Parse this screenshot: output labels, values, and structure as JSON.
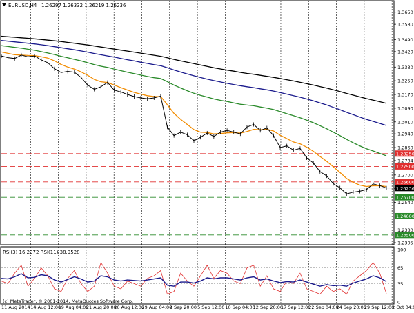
{
  "header": {
    "symbol_timeframe": "EURUSD,H4",
    "ohlc": "1.26297 1.26332 1.26219 1.26236"
  },
  "copyright": "(c) MetaTrader, © 2001-2014, MetaQuotes Software Corp.",
  "chart_data": {
    "type": "line",
    "title": "EURUSD,H4",
    "subtitle": "1.26297 1.26332 1.26219 1.26236",
    "x_labels": [
      "11 Aug 2014",
      "14 Aug 12:00",
      "19 Aug 04:00",
      "21 Aug 20:00",
      "26 Aug 12:00",
      "29 Aug 04:00",
      "2 Sep 20:00",
      "5 Sep 12:00",
      "10 Sep 04:00",
      "12 Sep 20:00",
      "17 Sep 12:00",
      "22 Sep 04:00",
      "24 Sep 20:00",
      "29 Sep 12:00",
      "2 Oct 04:00"
    ],
    "price_axis_labels": [
      "1.3650",
      "1.3580",
      "1.3490",
      "1.3420",
      "1.3330",
      "1.3250",
      "1.3170",
      "1.3090",
      "1.3010",
      "1.2940",
      "1.2860",
      "1.2784",
      "1.2700",
      "1.2620",
      "1.2540",
      "1.2460",
      "1.2380",
      "1.2305"
    ],
    "ylim": [
      1.2305,
      1.3665
    ],
    "horizontal_levels": [
      {
        "price": 1.2825,
        "label": "1.28250",
        "color": "#e03030"
      },
      {
        "price": 1.275,
        "label": "1.27500",
        "color": "#e03030"
      },
      {
        "price": 1.266,
        "label": "1.26600",
        "color": "#e03030"
      },
      {
        "price": 1.257,
        "label": "1.25700",
        "color": "#2a8a2a"
      },
      {
        "price": 1.246,
        "label": "1.24600",
        "color": "#2a8a2a"
      },
      {
        "price": 1.235,
        "label": "1.23500",
        "color": "#2a8a2a"
      }
    ],
    "current_price": {
      "price": 1.26236,
      "label": "1.26236"
    },
    "series": [
      {
        "kind": "close",
        "color": "#000000",
        "values": [
          1.3395,
          1.3385,
          1.338,
          1.34,
          1.339,
          1.3395,
          1.3372,
          1.3355,
          1.332,
          1.3298,
          1.3305,
          1.33,
          1.327,
          1.3225,
          1.32,
          1.3215,
          1.324,
          1.3195,
          1.3185,
          1.317,
          1.3158,
          1.315,
          1.3145,
          1.315,
          1.316,
          1.298,
          1.293,
          1.295,
          1.2935,
          1.29,
          1.292,
          1.2945,
          1.2925,
          1.295,
          1.296,
          1.295,
          1.294,
          1.298,
          1.2995,
          1.296,
          1.2975,
          1.293,
          1.286,
          1.287,
          1.2845,
          1.2855,
          1.28,
          1.277,
          1.272,
          1.2695,
          1.265,
          1.2625,
          1.259,
          1.26,
          1.2605,
          1.2615,
          1.2648,
          1.2638,
          1.2624
        ]
      },
      {
        "kind": "moving-average",
        "color": "#f28c00",
        "values": [
          1.3418,
          1.341,
          1.3402,
          1.34,
          1.3398,
          1.3397,
          1.339,
          1.3382,
          1.3366,
          1.3345,
          1.333,
          1.3318,
          1.3302,
          1.3282,
          1.3258,
          1.3244,
          1.324,
          1.3225,
          1.321,
          1.3196,
          1.3182,
          1.3172,
          1.3163,
          1.3158,
          1.3158,
          1.311,
          1.306,
          1.3025,
          1.2995,
          1.2965,
          1.295,
          1.2948,
          1.294,
          1.2942,
          1.2946,
          1.2947,
          1.2944,
          1.2954,
          1.2966,
          1.2964,
          1.2967,
          1.2957,
          1.2932,
          1.2912,
          1.2893,
          1.2882,
          1.2862,
          1.2838,
          1.2808,
          1.278,
          1.2748,
          1.2715,
          1.268,
          1.2657,
          1.2641,
          1.2633,
          1.2637,
          1.2637,
          1.2633
        ]
      },
      {
        "kind": "moving-average",
        "color": "#2a8a2a",
        "values": [
          1.3455,
          1.345,
          1.3445,
          1.344,
          1.3434,
          1.3428,
          1.342,
          1.3412,
          1.3403,
          1.3393,
          1.3384,
          1.3375,
          1.3366,
          1.3355,
          1.3344,
          1.3335,
          1.3328,
          1.3318,
          1.3309,
          1.33,
          1.3292,
          1.3283,
          1.3275,
          1.3268,
          1.3263,
          1.3245,
          1.3225,
          1.3208,
          1.3192,
          1.3177,
          1.3165,
          1.3155,
          1.3144,
          1.3136,
          1.3129,
          1.3121,
          1.3113,
          1.3108,
          1.3104,
          1.3097,
          1.309,
          1.3082,
          1.307,
          1.3058,
          1.3046,
          1.3034,
          1.302,
          1.3005,
          1.2988,
          1.297,
          1.295,
          1.293,
          1.2908,
          1.2888,
          1.287,
          1.2853,
          1.284,
          1.2826,
          1.2812
        ]
      },
      {
        "kind": "moving-average",
        "color": "#1a1a8c",
        "values": [
          1.3485,
          1.3481,
          1.3477,
          1.3473,
          1.3469,
          1.3465,
          1.346,
          1.3455,
          1.3449,
          1.3443,
          1.3437,
          1.3431,
          1.3424,
          1.3417,
          1.3409,
          1.3402,
          1.3395,
          1.3388,
          1.338,
          1.3373,
          1.3366,
          1.3358,
          1.3351,
          1.3344,
          1.3338,
          1.3326,
          1.3313,
          1.3301,
          1.329,
          1.3279,
          1.3269,
          1.326,
          1.3251,
          1.3243,
          1.3235,
          1.3228,
          1.3221,
          1.3215,
          1.321,
          1.3203,
          1.3197,
          1.319,
          1.3181,
          1.3172,
          1.3163,
          1.3154,
          1.3144,
          1.3133,
          1.3121,
          1.3109,
          1.3095,
          1.3081,
          1.3066,
          1.3052,
          1.3038,
          1.3025,
          1.3013,
          1.3001,
          1.2989
        ]
      },
      {
        "kind": "moving-average",
        "color": "#000000",
        "values": [
          1.351,
          1.3507,
          1.3504,
          1.3501,
          1.3498,
          1.3495,
          1.3491,
          1.3487,
          1.3483,
          1.3479,
          1.3474,
          1.3469,
          1.3464,
          1.3459,
          1.3453,
          1.3447,
          1.3441,
          1.3435,
          1.3429,
          1.3423,
          1.3417,
          1.3411,
          1.3405,
          1.3399,
          1.3393,
          1.3384,
          1.3375,
          1.3366,
          1.3358,
          1.335,
          1.3342,
          1.3334,
          1.3326,
          1.3319,
          1.3312,
          1.3306,
          1.3299,
          1.3293,
          1.3288,
          1.3282,
          1.3276,
          1.327,
          1.3263,
          1.3256,
          1.3249,
          1.3241,
          1.3233,
          1.3225,
          1.3216,
          1.3207,
          1.3197,
          1.3187,
          1.3176,
          1.3166,
          1.3156,
          1.3146,
          1.3137,
          1.3128,
          1.3118
        ]
      }
    ],
    "rsi_panel": {
      "label": "RSI(3) 16.2372  RSI(11) 38.9528",
      "levels": [
        100,
        65,
        35,
        0
      ],
      "level_labels": [
        "100",
        "65",
        "35",
        "0"
      ],
      "series": [
        {
          "name": "RSI(3)",
          "color": "#e03030",
          "values": [
            40,
            35,
            55,
            70,
            30,
            45,
            65,
            50,
            25,
            20,
            45,
            60,
            35,
            20,
            30,
            75,
            55,
            30,
            25,
            40,
            35,
            30,
            45,
            50,
            60,
            15,
            20,
            55,
            40,
            30,
            50,
            70,
            45,
            60,
            55,
            40,
            35,
            65,
            70,
            30,
            50,
            25,
            20,
            40,
            35,
            55,
            25,
            20,
            15,
            30,
            20,
            25,
            15,
            40,
            50,
            60,
            75,
            55,
            16
          ]
        },
        {
          "name": "RSI(11)",
          "color": "#1a1a8c",
          "values": [
            45,
            44,
            48,
            54,
            46,
            47,
            52,
            50,
            42,
            38,
            43,
            48,
            44,
            38,
            40,
            50,
            48,
            42,
            40,
            42,
            41,
            40,
            42,
            44,
            46,
            32,
            30,
            38,
            38,
            36,
            40,
            46,
            44,
            46,
            46,
            44,
            42,
            46,
            48,
            42,
            44,
            40,
            37,
            39,
            38,
            42,
            38,
            34,
            30,
            33,
            31,
            32,
            30,
            36,
            40,
            44,
            50,
            46,
            39
          ]
        }
      ]
    }
  }
}
